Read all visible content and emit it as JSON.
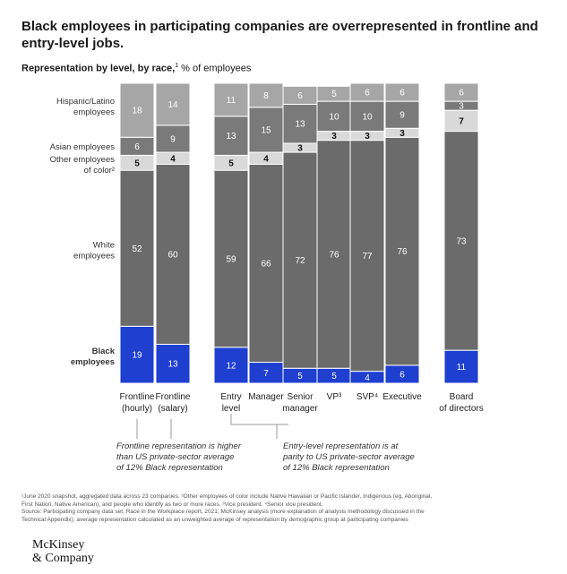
{
  "title": "Black employees in participating companies are overrepresented in frontline and entry-level jobs.",
  "subtitle_bold": "Representation by level, by race,",
  "subtitle_sup": "1",
  "subtitle_rest": " % of employees",
  "row_labels": [
    {
      "line1": "Hispanic/Latino",
      "line2": "employees",
      "bold": false
    },
    {
      "line1": "Asian employees",
      "line2": "",
      "bold": false
    },
    {
      "line1": "Other employees",
      "line2": "of color²",
      "bold": false
    },
    {
      "line1": "White",
      "line2": "employees",
      "bold": false
    },
    {
      "line1": "Black",
      "line2": "employees",
      "bold": true
    }
  ],
  "colors": {
    "hispanic": "#a6a6a6",
    "asian": "#7a7a7a",
    "other": "#d9d9d9",
    "white": "#6b6b6b",
    "black": "#1f3fd1",
    "gap_white_text": "#ffffff",
    "dark_text": "#111111"
  },
  "chart_data": {
    "type": "bar",
    "stacked": true,
    "normalized_to": 100,
    "unit": "% of employees",
    "categories": [
      {
        "line1": "Frontline",
        "line2": "(hourly)"
      },
      {
        "line1": "Frontline",
        "line2": "(salary)"
      },
      {
        "line1": "Entry",
        "line2": "level"
      },
      {
        "line1": "Manager",
        "line2": ""
      },
      {
        "line1": "Senior",
        "line2": "manager"
      },
      {
        "line1": "VP³",
        "line2": ""
      },
      {
        "line1": "SVP⁴",
        "line2": ""
      },
      {
        "line1": "Executive",
        "line2": ""
      },
      {
        "line1": "Board",
        "line2": "of directors"
      }
    ],
    "series": [
      {
        "name": "Black employees",
        "key": "black",
        "values": [
          19,
          13,
          12,
          7,
          5,
          5,
          4,
          6,
          11
        ]
      },
      {
        "name": "White employees",
        "key": "white",
        "values": [
          52,
          60,
          59,
          66,
          72,
          76,
          77,
          76,
          73
        ]
      },
      {
        "name": "Other employees of color",
        "key": "other",
        "values": [
          5,
          4,
          5,
          4,
          3,
          3,
          3,
          3,
          7
        ]
      },
      {
        "name": "Asian employees",
        "key": "asian",
        "values": [
          6,
          9,
          13,
          15,
          13,
          10,
          10,
          9,
          3
        ]
      },
      {
        "name": "Hispanic/Latino employees",
        "key": "hispanic",
        "values": [
          18,
          14,
          11,
          8,
          6,
          5,
          6,
          6,
          6
        ]
      }
    ]
  },
  "notes": [
    {
      "line1": "Frontline representation is higher",
      "line2": "than US private-sector average",
      "line3": "of 12% Black representation"
    },
    {
      "line1": "Entry-level representation is at",
      "line2": "parity to US private-sector average",
      "line3": "of 12% Black representation"
    }
  ],
  "footnotes": [
    "¹June 2020 snapshot, aggregated data across 23 companies. ²Other employees of color include Native Hawaiian or Pacific Islander, Indigenous (eg, Aboriginal,",
    "First Nation, Native American), and people who identify as two or more races. ³Vice president. ⁴Senior vice president.",
    "Source: Participating company data set; Race in the Workplace report, 2021; McKinsey analysis (more explanation of analysis methodology discussed in the",
    "Technical Appendix); average representation calculated as an unweighted average of representation by demographic group at participating companies"
  ],
  "logo": {
    "line1": "McKinsey",
    "line2": "& Company"
  }
}
